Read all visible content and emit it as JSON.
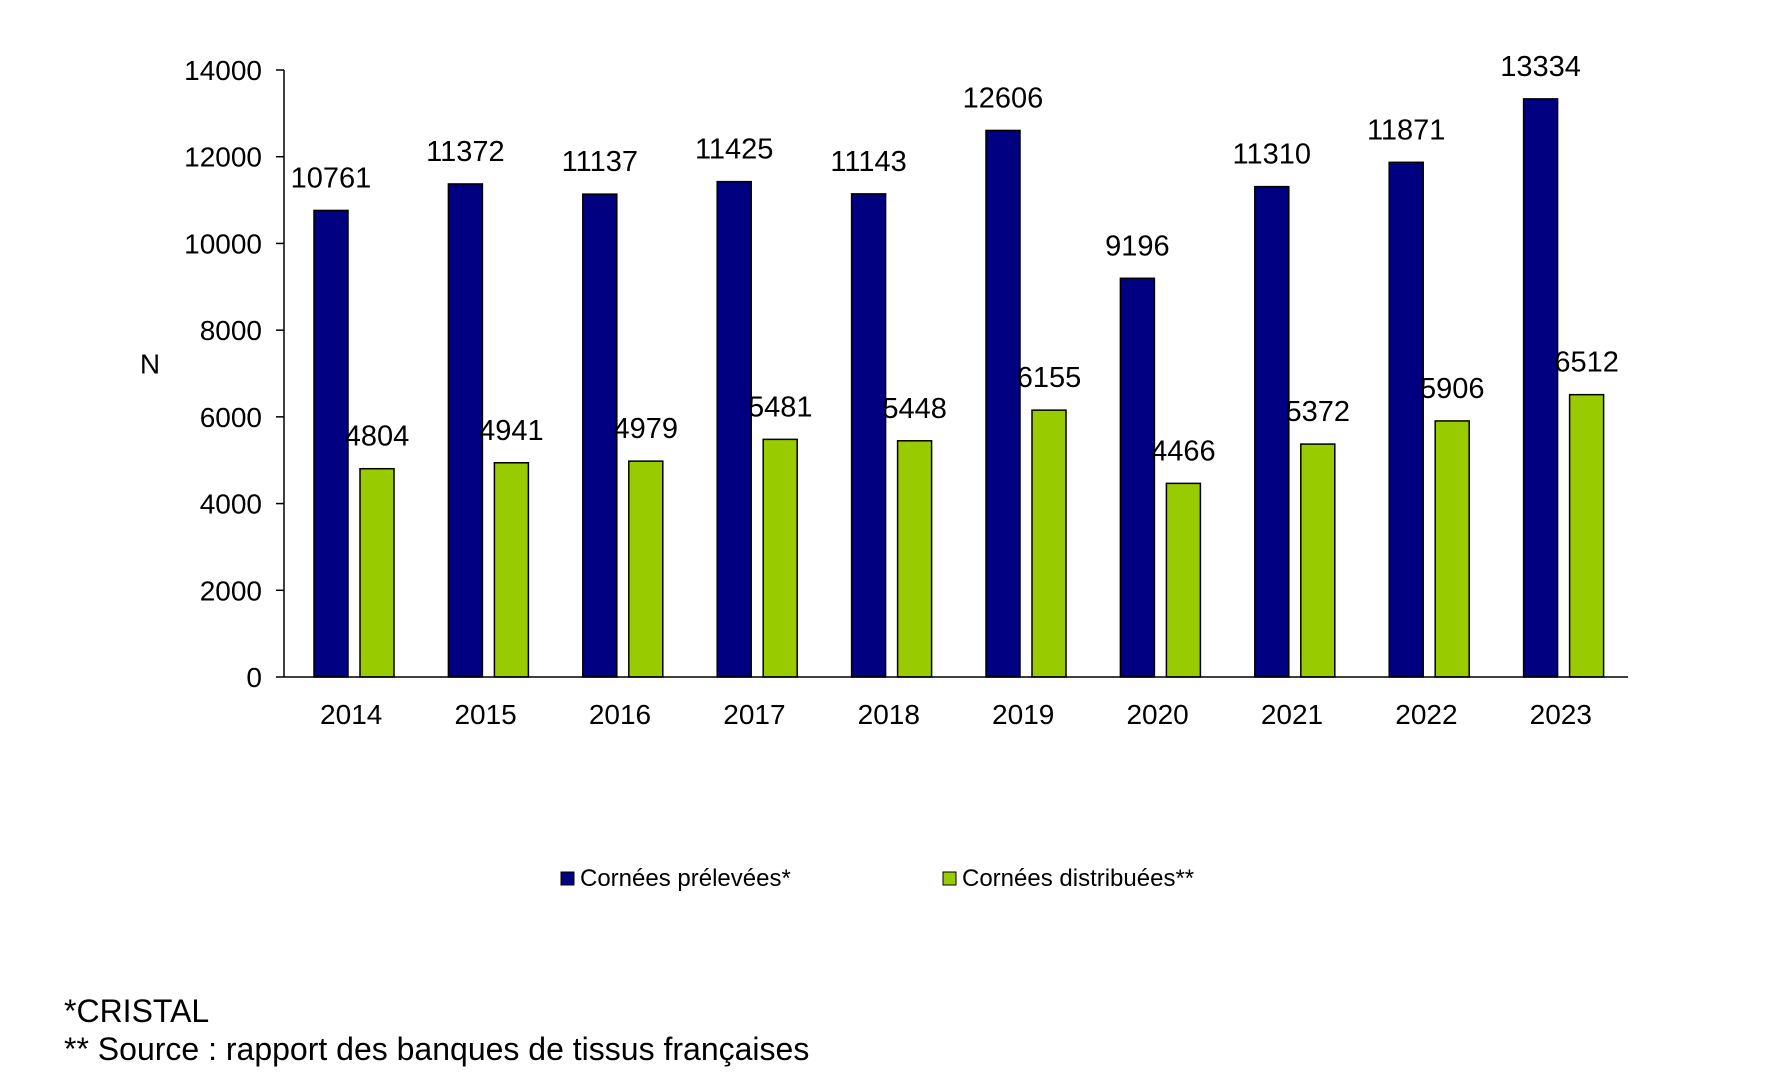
{
  "chart_data": {
    "type": "bar",
    "categories": [
      "2014",
      "2015",
      "2016",
      "2017",
      "2018",
      "2019",
      "2020",
      "2021",
      "2022",
      "2023"
    ],
    "series": [
      {
        "name": "Cornées prélevées*",
        "color": "#000080",
        "values": [
          10761,
          11372,
          11137,
          11425,
          11143,
          12606,
          9196,
          11310,
          11871,
          13334
        ]
      },
      {
        "name": "Cornées distribuées**",
        "color": "#99CC00",
        "values": [
          4804,
          4941,
          4979,
          5481,
          5448,
          6155,
          4466,
          5372,
          5906,
          6512
        ]
      }
    ],
    "title": "",
    "xlabel": "",
    "ylabel": "N",
    "ylim": [
      0,
      14000
    ],
    "yticks": [
      0,
      2000,
      4000,
      6000,
      8000,
      10000,
      12000,
      14000
    ],
    "grid": false,
    "data_labels": true,
    "legend_position": "bottom"
  },
  "footnotes": {
    "line1": "*CRISTAL",
    "line2": "** Source : rapport des banques de tissus françaises"
  }
}
